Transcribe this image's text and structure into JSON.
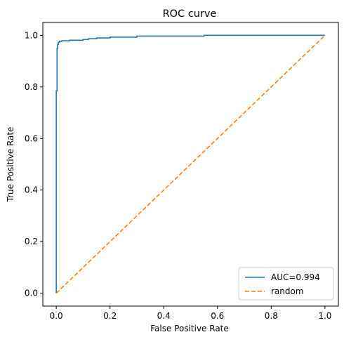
{
  "chart_data": {
    "type": "line",
    "title": "ROC curve",
    "xlabel": "False Positive Rate",
    "ylabel": "True Positive Rate",
    "xlim": [
      -0.05,
      1.05
    ],
    "ylim": [
      -0.05,
      1.05
    ],
    "xticks": [
      0.0,
      0.2,
      0.4,
      0.6,
      0.8,
      1.0
    ],
    "yticks": [
      0.0,
      0.2,
      0.4,
      0.6,
      0.8,
      1.0
    ],
    "xtick_labels": [
      "0.0",
      "0.2",
      "0.4",
      "0.6",
      "0.8",
      "1.0"
    ],
    "ytick_labels": [
      "0.0",
      "0.2",
      "0.4",
      "0.6",
      "0.8",
      "1.0"
    ],
    "grid": false,
    "legend_position": "lower-right",
    "series": [
      {
        "name": "AUC=0.994",
        "color": "#1f77b4",
        "style": "solid",
        "x": [
          0.0,
          0.0,
          0.003,
          0.003,
          0.005,
          0.005,
          0.008,
          0.008,
          0.012,
          0.012,
          0.02,
          0.02,
          0.05,
          0.05,
          0.1,
          0.1,
          0.12,
          0.12,
          0.15,
          0.15,
          0.2,
          0.2,
          0.3,
          0.3,
          0.55,
          0.55,
          0.7,
          1.0
        ],
        "y": [
          0.0,
          0.785,
          0.785,
          0.95,
          0.95,
          0.965,
          0.965,
          0.973,
          0.973,
          0.977,
          0.977,
          0.979,
          0.979,
          0.981,
          0.981,
          0.984,
          0.984,
          0.987,
          0.987,
          0.99,
          0.99,
          0.993,
          0.993,
          0.997,
          0.997,
          1.0,
          1.0,
          1.0
        ]
      },
      {
        "name": "random",
        "color": "#ff7f0e",
        "style": "dashed",
        "x": [
          0.0,
          1.0
        ],
        "y": [
          0.0,
          1.0
        ]
      }
    ]
  }
}
